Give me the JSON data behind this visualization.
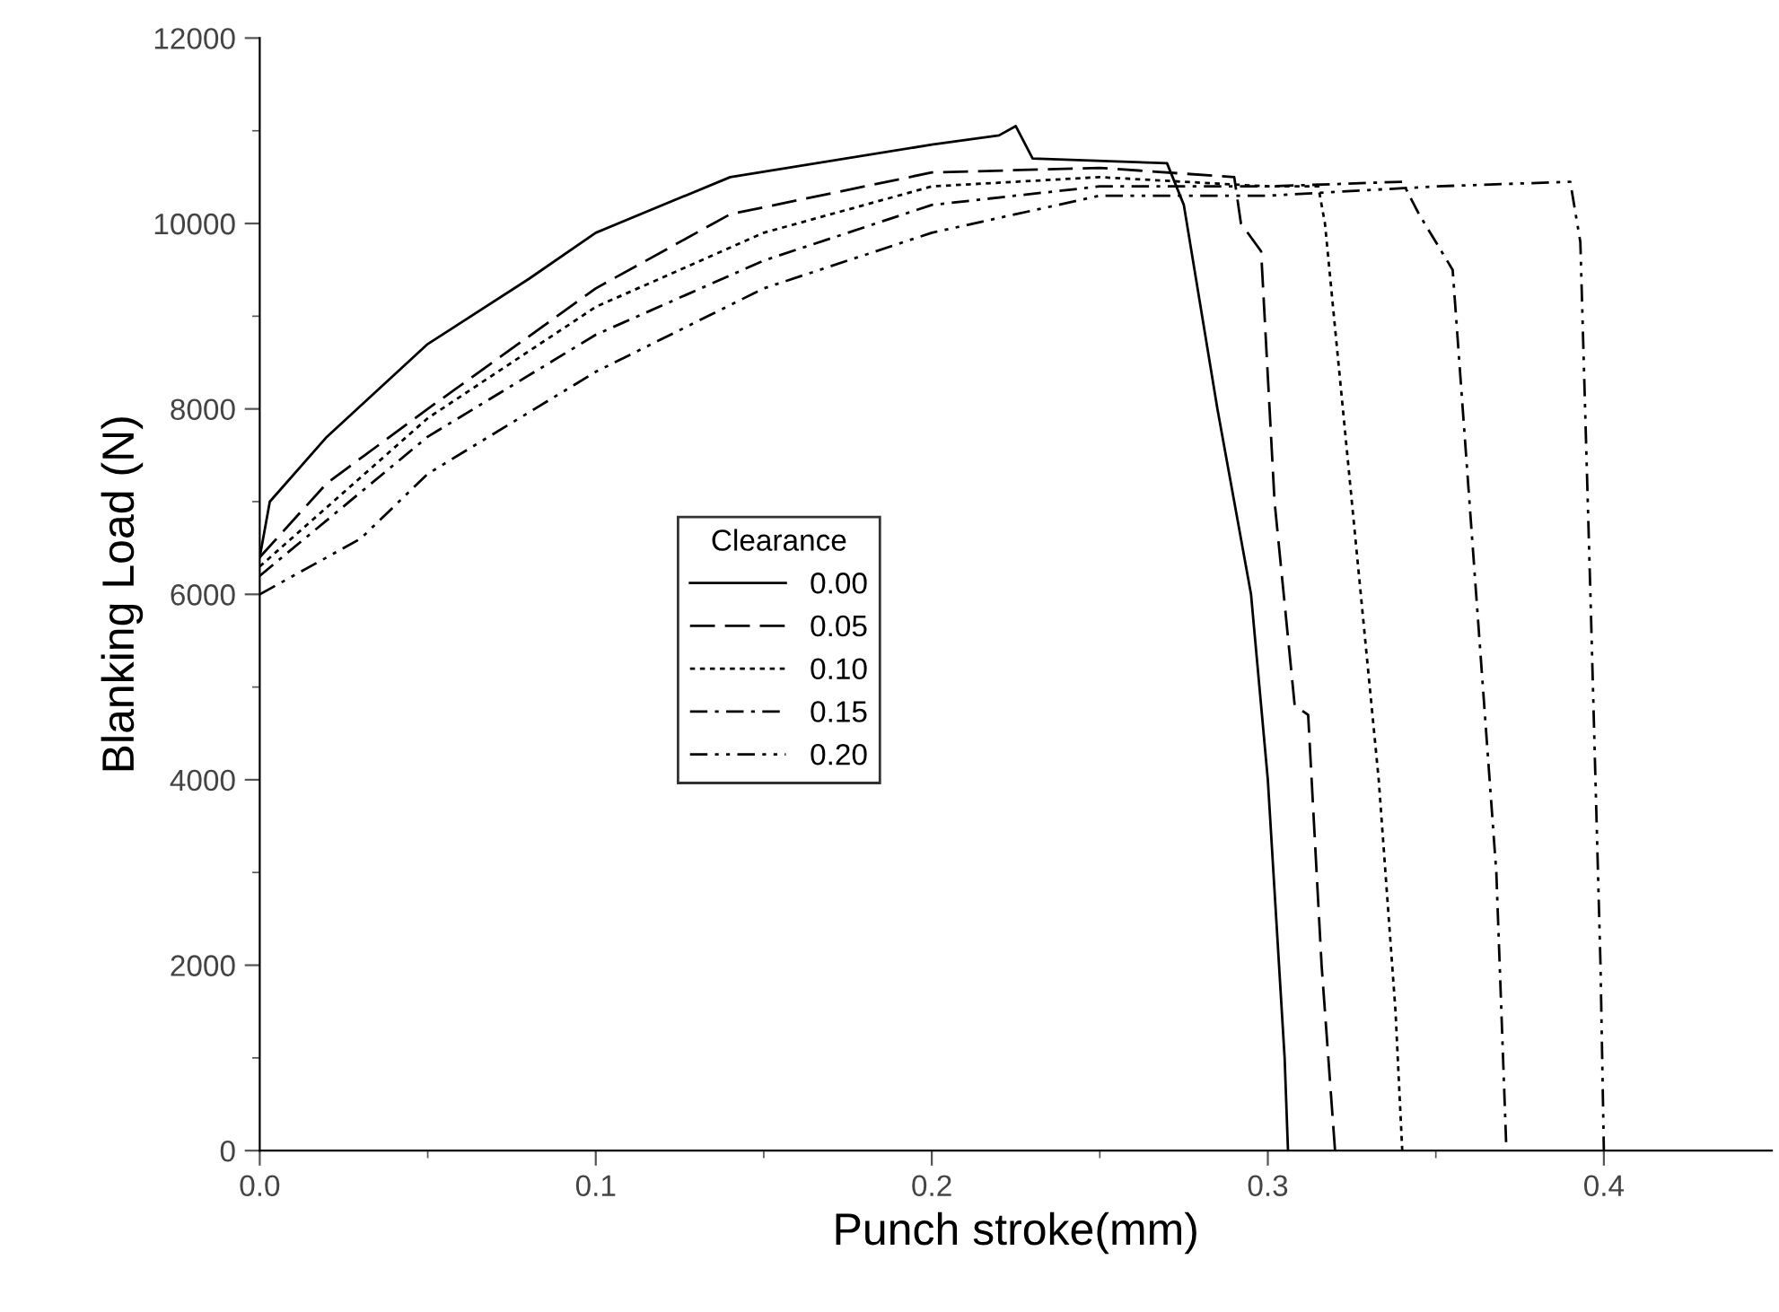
{
  "chart_data": {
    "type": "line",
    "xlabel": "Punch stroke(mm)",
    "ylabel": "Blanking Load (N)",
    "legend_title": "Clearance",
    "legend": "center left",
    "grid": false,
    "marker": "none",
    "xlim": [
      0,
      0.45
    ],
    "ylim": [
      0,
      12000
    ],
    "xticks": [
      {
        "value": 0,
        "label": "0.0"
      },
      {
        "value": 0.1,
        "label": "0.1"
      },
      {
        "value": 0.2,
        "label": "0.2"
      },
      {
        "value": 0.3,
        "label": "0.3"
      },
      {
        "value": 0.4,
        "label": "0.4"
      }
    ],
    "yticks": [
      0,
      2000,
      4000,
      6000,
      8000,
      10000,
      12000
    ],
    "series": [
      {
        "name": "0.00",
        "color": "#000000",
        "line_style": "solid",
        "x": [
          0,
          0.003,
          0.02,
          0.05,
          0.08,
          0.1,
          0.14,
          0.2,
          0.22,
          0.225,
          0.23,
          0.27,
          0.275,
          0.285,
          0.295,
          0.3,
          0.305,
          0.306
        ],
        "values": [
          6400,
          7000,
          7700,
          8700,
          9400,
          9900,
          10500,
          10850,
          10950,
          11050,
          10700,
          10650,
          10200,
          8000,
          6000,
          4000,
          1000,
          0
        ]
      },
      {
        "name": "0.05",
        "color": "#000000",
        "line_style": "dashed",
        "x": [
          0,
          0.02,
          0.05,
          0.1,
          0.14,
          0.2,
          0.25,
          0.29,
          0.292,
          0.298,
          0.302,
          0.308,
          0.312,
          0.316,
          0.32
        ],
        "values": [
          6400,
          7200,
          8000,
          9300,
          10100,
          10550,
          10600,
          10500,
          10000,
          9700,
          7000,
          4800,
          4700,
          2000,
          0
        ]
      },
      {
        "name": "0.10",
        "color": "#000000",
        "line_style": "dotted",
        "x": [
          0,
          0.05,
          0.1,
          0.15,
          0.2,
          0.25,
          0.3,
          0.315,
          0.317,
          0.325,
          0.333,
          0.338,
          0.34
        ],
        "values": [
          6300,
          7900,
          9100,
          9900,
          10400,
          10500,
          10400,
          10400,
          10000,
          7000,
          4000,
          1500,
          0
        ]
      },
      {
        "name": "0.15",
        "color": "#000000",
        "line_style": "dashdot",
        "x": [
          0,
          0.05,
          0.1,
          0.15,
          0.2,
          0.25,
          0.3,
          0.34,
          0.345,
          0.355,
          0.362,
          0.368,
          0.371
        ],
        "values": [
          6200,
          7700,
          8800,
          9600,
          10200,
          10400,
          10400,
          10450,
          10100,
          9500,
          6000,
          3000,
          0
        ]
      },
      {
        "name": "0.20",
        "color": "#000000",
        "line_style": "dashdotdot",
        "x": [
          0,
          0.03,
          0.05,
          0.1,
          0.15,
          0.2,
          0.25,
          0.3,
          0.35,
          0.39,
          0.393,
          0.396,
          0.399,
          0.4
        ],
        "values": [
          6000,
          6600,
          7300,
          8400,
          9300,
          9900,
          10300,
          10300,
          10400,
          10450,
          9800,
          6000,
          2000,
          0
        ]
      }
    ]
  }
}
